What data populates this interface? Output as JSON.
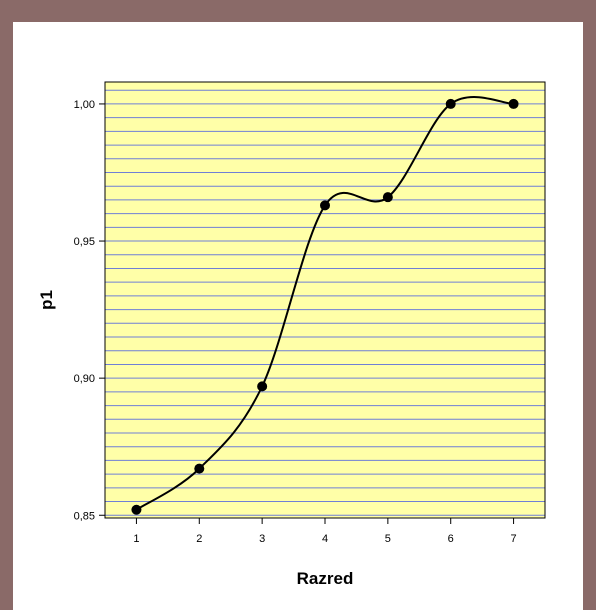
{
  "chart_data": {
    "type": "line",
    "title": "",
    "xlabel": "Razred",
    "ylabel": "p1",
    "x": [
      1,
      2,
      3,
      4,
      5,
      6,
      7
    ],
    "x_tick_labels": [
      "1",
      "2",
      "3",
      "4",
      "5",
      "6",
      "7"
    ],
    "y_ticks": [
      0.85,
      0.9,
      0.95,
      1.0
    ],
    "y_tick_labels": [
      "0,85",
      "0,90",
      "0,95",
      "1,00"
    ],
    "ylim": [
      0.849,
      1.008
    ],
    "xlim": [
      0.5,
      7.5
    ],
    "grid": true,
    "smooth": true,
    "series": [
      {
        "values": [
          0.852,
          0.867,
          0.897,
          0.963,
          0.966,
          1.0,
          1.0
        ]
      }
    ],
    "colors": {
      "plot_background": "#ffffa8",
      "gridline": "#6f7fd6",
      "line": "#000000",
      "marker": "#000000",
      "page_border": "#8a6a68"
    }
  }
}
